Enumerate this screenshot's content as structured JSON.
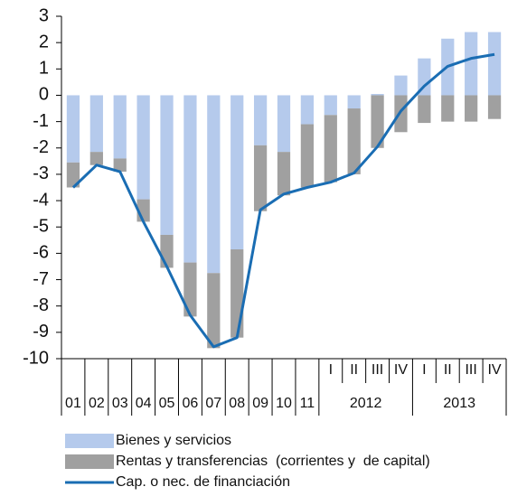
{
  "chart_data": {
    "type": "bar-line",
    "categories": [
      "01",
      "02",
      "03",
      "04",
      "05",
      "06",
      "07",
      "08",
      "09",
      "10",
      "11",
      "I",
      "II",
      "III",
      "IV",
      "I",
      "II",
      "III",
      "IV"
    ],
    "groups": [
      "2012",
      "2013"
    ],
    "series": [
      {
        "name": "Bienes y servicios",
        "color": "#b5caec",
        "kind": "bar",
        "values": [
          -2.55,
          -2.15,
          -2.4,
          -3.95,
          -5.3,
          -6.35,
          -6.75,
          -5.85,
          -1.9,
          -2.15,
          -1.1,
          -0.75,
          -0.5,
          0.05,
          0.75,
          1.4,
          2.15,
          2.4,
          2.4
        ]
      },
      {
        "name": "Rentas y transferencias  (corrientes y  de capital)",
        "color": "#a0a0a0",
        "kind": "bar",
        "values": [
          -0.95,
          -0.5,
          -0.5,
          -0.85,
          -1.25,
          -2.05,
          -2.85,
          -3.35,
          -2.5,
          -1.65,
          -2.4,
          -2.55,
          -2.5,
          -2.0,
          -1.4,
          -1.05,
          -1.0,
          -1.0,
          -0.9
        ]
      },
      {
        "name": "Cap. o nec. de financiación",
        "color": "#1a6db3",
        "kind": "line",
        "values": [
          -3.5,
          -2.65,
          -2.9,
          -4.8,
          -6.5,
          -8.35,
          -9.55,
          -9.2,
          -4.35,
          -3.75,
          -3.5,
          -3.3,
          -2.95,
          -1.95,
          -0.6,
          0.35,
          1.1,
          1.4,
          1.55
        ]
      }
    ],
    "ylim": [
      -10,
      3
    ],
    "yticks": [
      -10,
      -9,
      -8,
      -7,
      -6,
      -5,
      -4,
      -3,
      -2,
      -1,
      0,
      1,
      2,
      3
    ]
  }
}
